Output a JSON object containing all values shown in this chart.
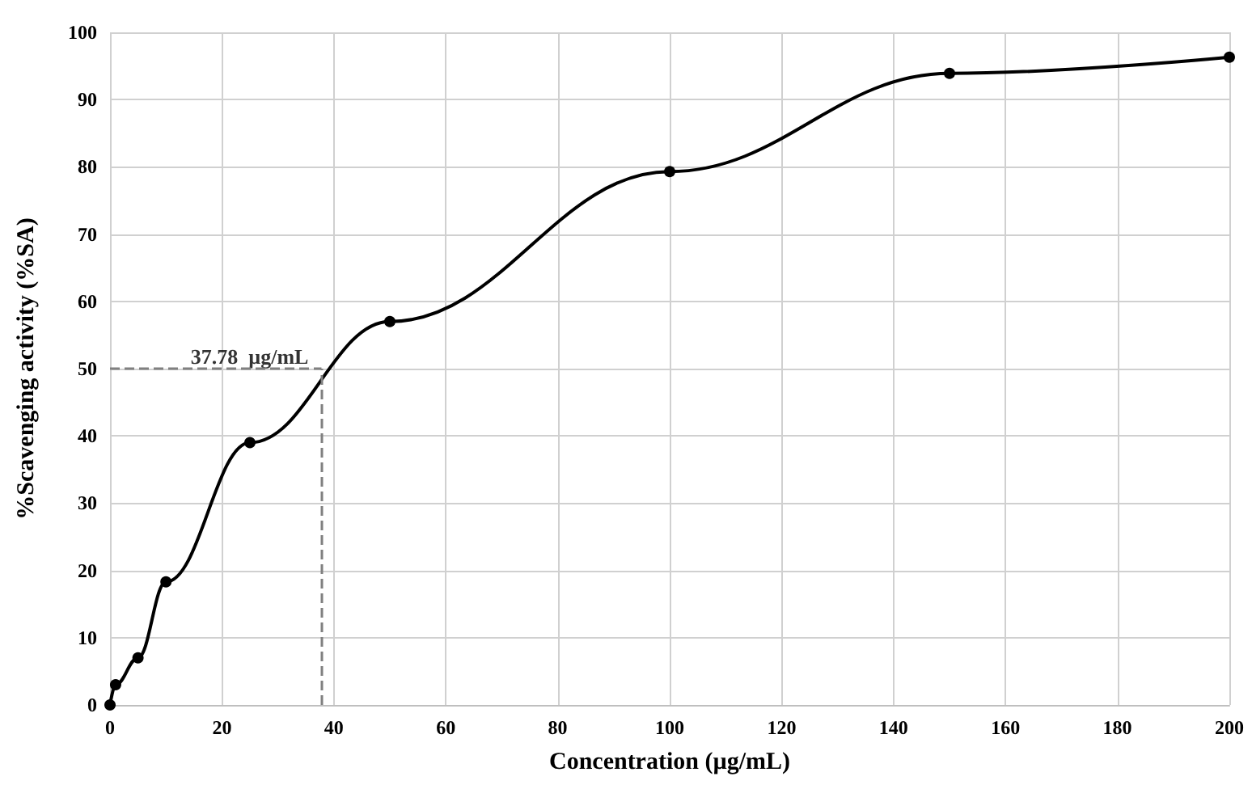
{
  "chart_data": {
    "type": "line",
    "xlabel": "Concentration (µg/mL)",
    "ylabel": "%Scavenging activity (%SA)",
    "x": [
      0,
      1,
      5,
      10,
      25,
      50,
      100,
      150,
      200
    ],
    "series": [
      {
        "color": "#000000",
        "values": [
          0,
          3,
          7,
          18.3,
          39,
          57,
          79.3,
          93.9,
          96.3
        ]
      }
    ],
    "xlim": [
      0,
      200
    ],
    "xticks": [
      0,
      20,
      40,
      60,
      80,
      100,
      120,
      140,
      160,
      180,
      200
    ],
    "ylim": [
      0,
      100
    ],
    "yticks": [
      0,
      10,
      20,
      30,
      40,
      50,
      60,
      70,
      80,
      90,
      100
    ],
    "grid": true,
    "marker": "circle",
    "line_style": "solid",
    "ref_lines": [
      {
        "axis": "x",
        "value": 37.78,
        "color": "#808080"
      },
      {
        "axis": "y",
        "value": 50,
        "color": "#808080"
      }
    ],
    "annotations": [
      {
        "text": "37.78  µg/mL",
        "x": 37.78,
        "y": 50
      }
    ]
  }
}
